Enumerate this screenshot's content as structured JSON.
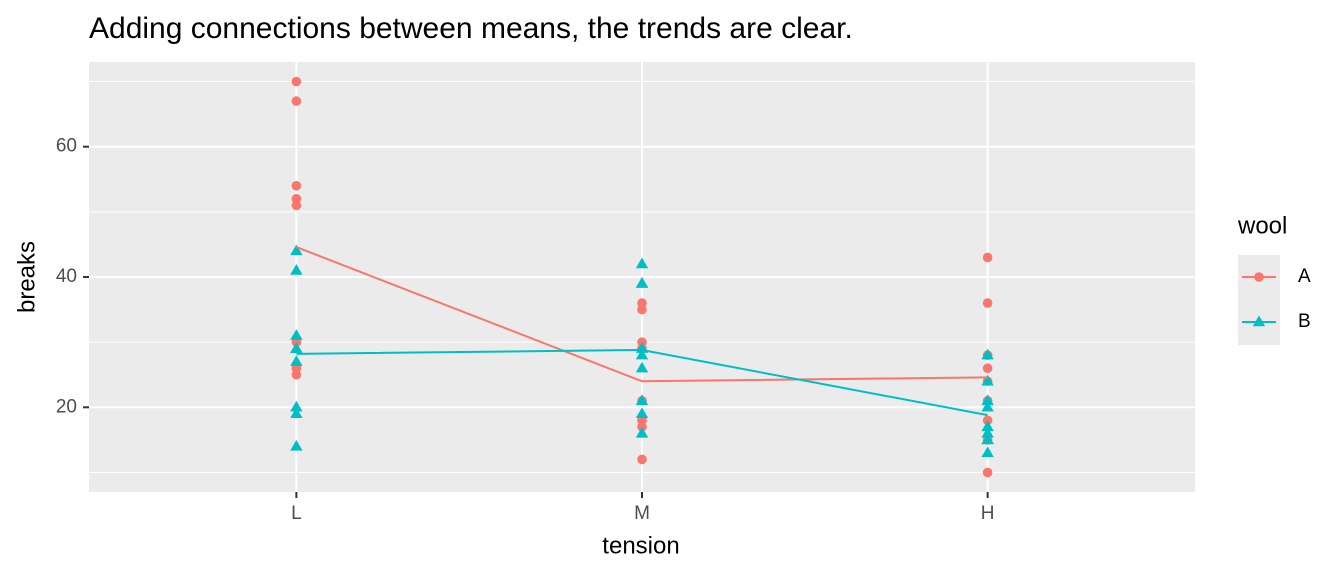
{
  "chart_data": {
    "type": "point-line",
    "title": "Adding connections between means, the trends are clear.",
    "x_label": "tension",
    "y_label": "breaks",
    "categories": [
      "L",
      "M",
      "H"
    ],
    "ylim": [
      7,
      73
    ],
    "yticks": [
      20,
      40,
      60
    ],
    "y_minor_gridlines": [
      10,
      30,
      50,
      70
    ],
    "grid": true,
    "legend_title": "wool",
    "legend_position": "right",
    "series": [
      {
        "name": "A",
        "color": "#F8766D",
        "shape": "circle",
        "points": [
          [
            26,
            30,
            54,
            25,
            70,
            52,
            51,
            26,
            67
          ],
          [
            18,
            21,
            29,
            17,
            12,
            18,
            35,
            30,
            36
          ],
          [
            36,
            21,
            24,
            18,
            10,
            43,
            28,
            15,
            26
          ]
        ],
        "means": [
          44.6,
          24.0,
          24.6
        ]
      },
      {
        "name": "B",
        "color": "#00BFC4",
        "shape": "triangle",
        "points": [
          [
            27,
            14,
            29,
            19,
            29,
            31,
            41,
            20,
            44
          ],
          [
            42,
            26,
            19,
            16,
            39,
            28,
            21,
            39,
            29
          ],
          [
            20,
            21,
            24,
            17,
            13,
            15,
            15,
            16,
            28
          ]
        ],
        "means": [
          28.2,
          28.8,
          18.8
        ]
      }
    ]
  }
}
